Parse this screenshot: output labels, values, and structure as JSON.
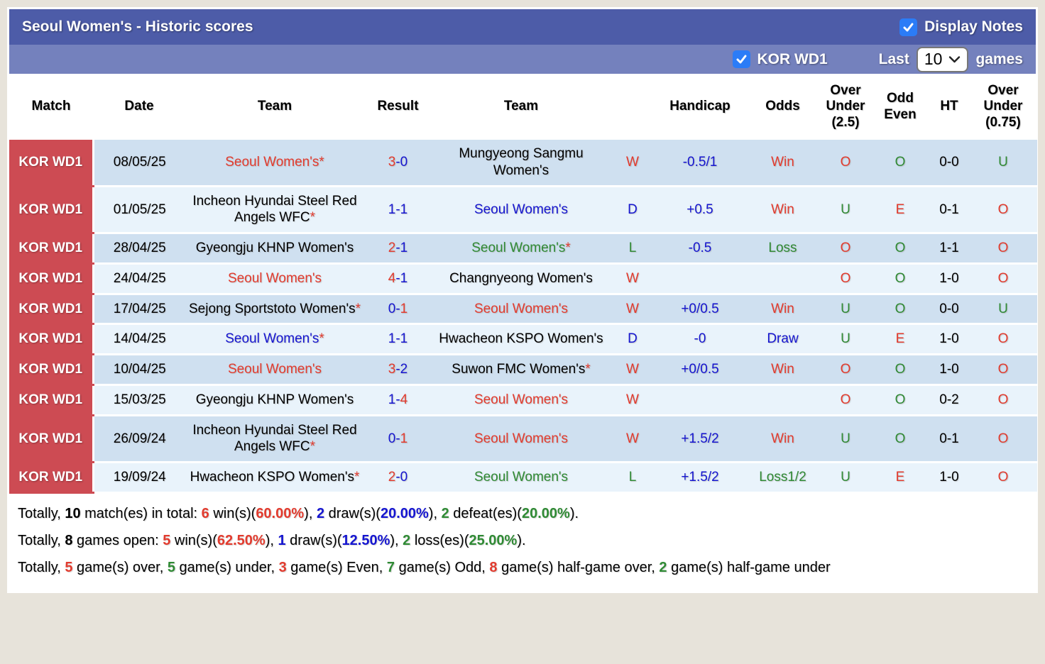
{
  "theme": {
    "page_bg": "#e7e3da",
    "header_bar": "#4d5ca8",
    "sub_bar": "#7481bd",
    "row_dark": "#cfe0f0",
    "row_light": "#e9f3fb",
    "league_cell": "#cd4b53",
    "checkbox_blue": "#2b7cf7",
    "red": "#e23b2e",
    "blue": "#1515d0",
    "green": "#2f8a34",
    "black": "#000000"
  },
  "header": {
    "title": "Seoul Women's - Historic scores",
    "display_notes_label": "Display Notes",
    "league_label": "KOR WD1",
    "last_label": "Last",
    "games_count": "10",
    "games_label": "games"
  },
  "columns": [
    "Match",
    "Date",
    "Team",
    "Result",
    "Team",
    "",
    "Handicap",
    "Odds",
    "Over\nUnder\n(2.5)",
    "Odd\nEven",
    "HT",
    "Over\nUnder\n(0.75)"
  ],
  "rows": [
    {
      "league": "KOR WD1",
      "date": "08/05/25",
      "home": {
        "name": "Seoul Women's",
        "star": true,
        "color": "red"
      },
      "result": [
        [
          "3",
          "red"
        ],
        [
          "-",
          "blue"
        ],
        [
          "0",
          "blue"
        ]
      ],
      "away": {
        "name": "Mungyeong Sangmu Women's",
        "star": false,
        "color": "black"
      },
      "outcome": {
        "t": "W",
        "color": "red"
      },
      "handicap": "-0.5/1",
      "odds": {
        "t": "Win",
        "color": "red"
      },
      "over_under_25": {
        "t": "O",
        "color": "red"
      },
      "odd_even": {
        "t": "O",
        "color": "green"
      },
      "ht": "0-0",
      "over_under_075": {
        "t": "U",
        "color": "green"
      }
    },
    {
      "league": "KOR WD1",
      "date": "01/05/25",
      "home": {
        "name": "Incheon Hyundai Steel Red Angels WFC",
        "star": true,
        "color": "black"
      },
      "result": [
        [
          "1",
          "blue"
        ],
        [
          "-",
          "blue"
        ],
        [
          "1",
          "blue"
        ]
      ],
      "away": {
        "name": "Seoul Women's",
        "star": false,
        "color": "blue"
      },
      "outcome": {
        "t": "D",
        "color": "blue"
      },
      "handicap": "+0.5",
      "odds": {
        "t": "Win",
        "color": "red"
      },
      "over_under_25": {
        "t": "U",
        "color": "green"
      },
      "odd_even": {
        "t": "E",
        "color": "red"
      },
      "ht": "0-1",
      "over_under_075": {
        "t": "O",
        "color": "red"
      }
    },
    {
      "league": "KOR WD1",
      "date": "28/04/25",
      "home": {
        "name": "Gyeongju KHNP Women's",
        "star": false,
        "color": "black"
      },
      "result": [
        [
          "2",
          "red"
        ],
        [
          "-",
          "blue"
        ],
        [
          "1",
          "blue"
        ]
      ],
      "away": {
        "name": "Seoul Women's",
        "star": true,
        "color": "green"
      },
      "outcome": {
        "t": "L",
        "color": "green"
      },
      "handicap": "-0.5",
      "odds": {
        "t": "Loss",
        "color": "green"
      },
      "over_under_25": {
        "t": "O",
        "color": "red"
      },
      "odd_even": {
        "t": "O",
        "color": "green"
      },
      "ht": "1-1",
      "over_under_075": {
        "t": "O",
        "color": "red"
      }
    },
    {
      "league": "KOR WD1",
      "date": "24/04/25",
      "home": {
        "name": "Seoul Women's",
        "star": false,
        "color": "red"
      },
      "result": [
        [
          "4",
          "red"
        ],
        [
          "-",
          "blue"
        ],
        [
          "1",
          "blue"
        ]
      ],
      "away": {
        "name": "Changnyeong Women's",
        "star": false,
        "color": "black"
      },
      "outcome": {
        "t": "W",
        "color": "red"
      },
      "handicap": "",
      "odds": {
        "t": "",
        "color": "black"
      },
      "over_under_25": {
        "t": "O",
        "color": "red"
      },
      "odd_even": {
        "t": "O",
        "color": "green"
      },
      "ht": "1-0",
      "over_under_075": {
        "t": "O",
        "color": "red"
      }
    },
    {
      "league": "KOR WD1",
      "date": "17/04/25",
      "home": {
        "name": "Sejong Sportstoto Women's",
        "star": true,
        "color": "black"
      },
      "result": [
        [
          "0",
          "blue"
        ],
        [
          "-",
          "blue"
        ],
        [
          "1",
          "red"
        ]
      ],
      "away": {
        "name": "Seoul Women's",
        "star": false,
        "color": "red"
      },
      "outcome": {
        "t": "W",
        "color": "red"
      },
      "handicap": "+0/0.5",
      "odds": {
        "t": "Win",
        "color": "red"
      },
      "over_under_25": {
        "t": "U",
        "color": "green"
      },
      "odd_even": {
        "t": "O",
        "color": "green"
      },
      "ht": "0-0",
      "over_under_075": {
        "t": "U",
        "color": "green"
      }
    },
    {
      "league": "KOR WD1",
      "date": "14/04/25",
      "home": {
        "name": "Seoul Women's",
        "star": true,
        "color": "blue"
      },
      "result": [
        [
          "1",
          "blue"
        ],
        [
          "-",
          "blue"
        ],
        [
          "1",
          "blue"
        ]
      ],
      "away": {
        "name": "Hwacheon KSPO Women's",
        "star": false,
        "color": "black"
      },
      "outcome": {
        "t": "D",
        "color": "blue"
      },
      "handicap": "-0",
      "odds": {
        "t": "Draw",
        "color": "blue"
      },
      "over_under_25": {
        "t": "U",
        "color": "green"
      },
      "odd_even": {
        "t": "E",
        "color": "red"
      },
      "ht": "1-0",
      "over_under_075": {
        "t": "O",
        "color": "red"
      }
    },
    {
      "league": "KOR WD1",
      "date": "10/04/25",
      "home": {
        "name": "Seoul Women's",
        "star": false,
        "color": "red"
      },
      "result": [
        [
          "3",
          "red"
        ],
        [
          "-",
          "blue"
        ],
        [
          "2",
          "blue"
        ]
      ],
      "away": {
        "name": "Suwon FMC Women's",
        "star": true,
        "color": "black"
      },
      "outcome": {
        "t": "W",
        "color": "red"
      },
      "handicap": "+0/0.5",
      "odds": {
        "t": "Win",
        "color": "red"
      },
      "over_under_25": {
        "t": "O",
        "color": "red"
      },
      "odd_even": {
        "t": "O",
        "color": "green"
      },
      "ht": "1-0",
      "over_under_075": {
        "t": "O",
        "color": "red"
      }
    },
    {
      "league": "KOR WD1",
      "date": "15/03/25",
      "home": {
        "name": "Gyeongju KHNP Women's",
        "star": false,
        "color": "black"
      },
      "result": [
        [
          "1",
          "blue"
        ],
        [
          "-",
          "blue"
        ],
        [
          "4",
          "red"
        ]
      ],
      "away": {
        "name": "Seoul Women's",
        "star": false,
        "color": "red"
      },
      "outcome": {
        "t": "W",
        "color": "red"
      },
      "handicap": "",
      "odds": {
        "t": "",
        "color": "black"
      },
      "over_under_25": {
        "t": "O",
        "color": "red"
      },
      "odd_even": {
        "t": "O",
        "color": "green"
      },
      "ht": "0-2",
      "over_under_075": {
        "t": "O",
        "color": "red"
      }
    },
    {
      "league": "KOR WD1",
      "date": "26/09/24",
      "home": {
        "name": "Incheon Hyundai Steel Red Angels WFC",
        "star": true,
        "color": "black"
      },
      "result": [
        [
          "0",
          "blue"
        ],
        [
          "-",
          "blue"
        ],
        [
          "1",
          "red"
        ]
      ],
      "away": {
        "name": "Seoul Women's",
        "star": false,
        "color": "red"
      },
      "outcome": {
        "t": "W",
        "color": "red"
      },
      "handicap": "+1.5/2",
      "odds": {
        "t": "Win",
        "color": "red"
      },
      "over_under_25": {
        "t": "U",
        "color": "green"
      },
      "odd_even": {
        "t": "O",
        "color": "green"
      },
      "ht": "0-1",
      "over_under_075": {
        "t": "O",
        "color": "red"
      }
    },
    {
      "league": "KOR WD1",
      "date": "19/09/24",
      "home": {
        "name": "Hwacheon KSPO Women's",
        "star": true,
        "color": "black"
      },
      "result": [
        [
          "2",
          "red"
        ],
        [
          "-",
          "blue"
        ],
        [
          "0",
          "blue"
        ]
      ],
      "away": {
        "name": "Seoul Women's",
        "star": false,
        "color": "green"
      },
      "outcome": {
        "t": "L",
        "color": "green"
      },
      "handicap": "+1.5/2",
      "odds": {
        "t": "Loss1/2",
        "color": "green"
      },
      "over_under_25": {
        "t": "U",
        "color": "green"
      },
      "odd_even": {
        "t": "E",
        "color": "red"
      },
      "ht": "1-0",
      "over_under_075": {
        "t": "O",
        "color": "red"
      }
    }
  ],
  "footer": {
    "lines": [
      [
        {
          "t": "Totally, "
        },
        {
          "t": "10",
          "b": 1
        },
        {
          "t": " match(es) in total: "
        },
        {
          "t": "6",
          "c": "red",
          "b": 1
        },
        {
          "t": " win(s)("
        },
        {
          "t": "60.00%",
          "c": "red",
          "b": 1
        },
        {
          "t": "), "
        },
        {
          "t": "2",
          "c": "blue",
          "b": 1
        },
        {
          "t": " draw(s)("
        },
        {
          "t": "20.00%",
          "c": "blue",
          "b": 1
        },
        {
          "t": "), "
        },
        {
          "t": "2",
          "c": "green",
          "b": 1
        },
        {
          "t": " defeat(es)("
        },
        {
          "t": "20.00%",
          "c": "green",
          "b": 1
        },
        {
          "t": ")."
        }
      ],
      [
        {
          "t": "Totally, "
        },
        {
          "t": "8",
          "b": 1
        },
        {
          "t": " games open: "
        },
        {
          "t": "5",
          "c": "red",
          "b": 1
        },
        {
          "t": " win(s)("
        },
        {
          "t": "62.50%",
          "c": "red",
          "b": 1
        },
        {
          "t": "), "
        },
        {
          "t": "1",
          "c": "blue",
          "b": 1
        },
        {
          "t": " draw(s)("
        },
        {
          "t": "12.50%",
          "c": "blue",
          "b": 1
        },
        {
          "t": "), "
        },
        {
          "t": "2",
          "c": "green",
          "b": 1
        },
        {
          "t": " loss(es)("
        },
        {
          "t": "25.00%",
          "c": "green",
          "b": 1
        },
        {
          "t": ")."
        }
      ],
      [
        {
          "t": "Totally, "
        },
        {
          "t": "5",
          "c": "red",
          "b": 1
        },
        {
          "t": " game(s) over, "
        },
        {
          "t": "5",
          "c": "green",
          "b": 1
        },
        {
          "t": " game(s) under, "
        },
        {
          "t": "3",
          "c": "red",
          "b": 1
        },
        {
          "t": " game(s) Even, "
        },
        {
          "t": "7",
          "c": "green",
          "b": 1
        },
        {
          "t": " game(s) Odd, "
        },
        {
          "t": "8",
          "c": "red",
          "b": 1
        },
        {
          "t": " game(s) half-game over, "
        },
        {
          "t": "2",
          "c": "green",
          "b": 1
        },
        {
          "t": " game(s) half-game under"
        }
      ]
    ]
  }
}
